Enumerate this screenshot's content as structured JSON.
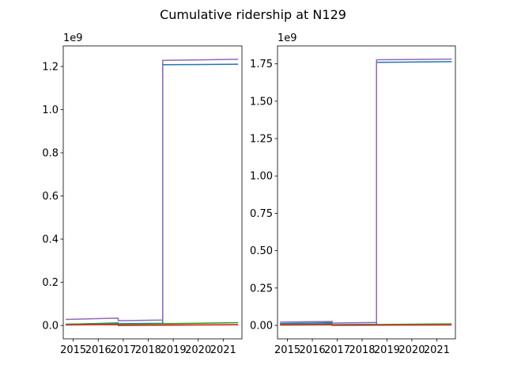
{
  "figure": {
    "title": "Cumulative ridership at N129"
  },
  "chart_data": [
    {
      "type": "line",
      "offset_label": "1e9",
      "xlim": [
        2014.6,
        2021.75
      ],
      "ylim": [
        -0.062,
        1.295
      ],
      "xticks": [
        2015,
        2016,
        2017,
        2018,
        2019,
        2020,
        2021
      ],
      "xtick_labels": [
        "2015",
        "2016",
        "2017",
        "2018",
        "2019",
        "2020",
        "2021"
      ],
      "yticks": [
        0.0,
        0.2,
        0.4,
        0.6,
        0.8,
        1.0,
        1.2
      ],
      "ytick_labels": [
        "0.0",
        "0.2",
        "0.4",
        "0.6",
        "0.8",
        "1.0",
        "1.2"
      ],
      "series": [
        {
          "color": "#1f77b4",
          "points": [
            [
              2014.7,
              0.005
            ],
            [
              2016.8,
              0.012
            ],
            [
              2016.8,
              0.008
            ],
            [
              2018.58,
              0.01
            ],
            [
              2018.58,
              1.208
            ],
            [
              2021.6,
              1.21
            ]
          ]
        },
        {
          "color": "#ff7f0e",
          "points": [
            [
              2014.7,
              0.003
            ],
            [
              2016.8,
              0.004
            ],
            [
              2016.8,
              0.002
            ],
            [
              2021.6,
              0.004
            ]
          ]
        },
        {
          "color": "#2ca02c",
          "points": [
            [
              2014.7,
              0.006
            ],
            [
              2016.8,
              0.009
            ],
            [
              2016.8,
              0.005
            ],
            [
              2018.58,
              0.008
            ],
            [
              2021.6,
              0.013
            ]
          ]
        },
        {
          "color": "#d62728",
          "points": [
            [
              2014.7,
              0.002
            ],
            [
              2016.8,
              0.004
            ],
            [
              2016.8,
              0.0
            ],
            [
              2021.6,
              0.003
            ]
          ]
        },
        {
          "color": "#9467bd",
          "points": [
            [
              2014.7,
              0.028
            ],
            [
              2016.8,
              0.034
            ],
            [
              2016.8,
              0.022
            ],
            [
              2018.58,
              0.025
            ],
            [
              2018.58,
              1.228
            ],
            [
              2021.6,
              1.233
            ]
          ]
        }
      ]
    },
    {
      "type": "line",
      "offset_label": "1e9",
      "xlim": [
        2014.6,
        2021.75
      ],
      "ylim": [
        -0.09,
        1.87
      ],
      "xticks": [
        2015,
        2016,
        2017,
        2018,
        2019,
        2020,
        2021
      ],
      "xtick_labels": [
        "2015",
        "2016",
        "2017",
        "2018",
        "2019",
        "2020",
        "2021"
      ],
      "yticks": [
        0.0,
        0.25,
        0.5,
        0.75,
        1.0,
        1.25,
        1.5,
        1.75
      ],
      "ytick_labels": [
        "0.00",
        "0.25",
        "0.50",
        "0.75",
        "1.00",
        "1.25",
        "1.50",
        "1.75"
      ],
      "series": [
        {
          "color": "#1f77b4",
          "points": [
            [
              2014.7,
              0.012
            ],
            [
              2016.8,
              0.018
            ],
            [
              2016.8,
              0.005
            ],
            [
              2018.58,
              0.008
            ],
            [
              2018.58,
              1.76
            ],
            [
              2021.6,
              1.765
            ]
          ]
        },
        {
          "color": "#ff7f0e",
          "points": [
            [
              2014.7,
              0.004
            ],
            [
              2016.8,
              0.005
            ],
            [
              2016.8,
              0.002
            ],
            [
              2021.6,
              0.004
            ]
          ]
        },
        {
          "color": "#2ca02c",
          "points": [
            [
              2014.7,
              0.006
            ],
            [
              2016.8,
              0.009
            ],
            [
              2016.8,
              0.004
            ],
            [
              2018.58,
              0.006
            ],
            [
              2021.6,
              0.01
            ]
          ]
        },
        {
          "color": "#d62728",
          "points": [
            [
              2014.7,
              0.002
            ],
            [
              2016.8,
              0.004
            ],
            [
              2016.8,
              0.0
            ],
            [
              2021.6,
              0.003
            ]
          ]
        },
        {
          "color": "#9467bd",
          "points": [
            [
              2014.7,
              0.022
            ],
            [
              2016.8,
              0.026
            ],
            [
              2016.8,
              0.015
            ],
            [
              2018.58,
              0.02
            ],
            [
              2018.58,
              1.777
            ],
            [
              2021.6,
              1.782
            ]
          ]
        }
      ]
    }
  ]
}
